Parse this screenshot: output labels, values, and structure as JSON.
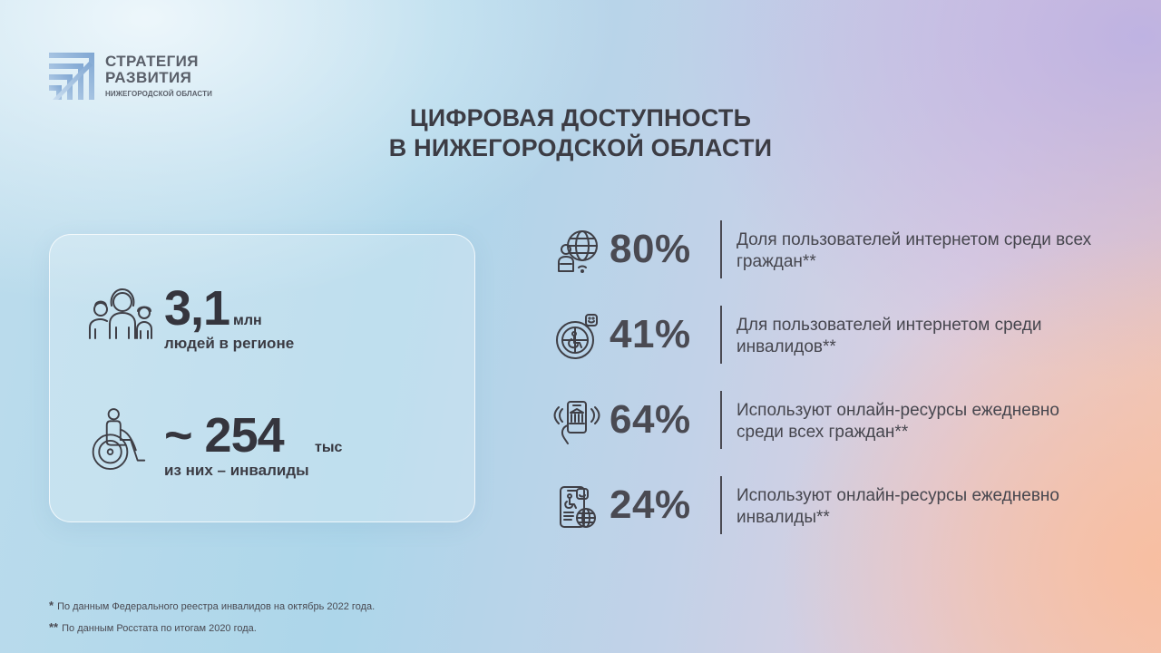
{
  "logo": {
    "line1": "СТРАТЕГИЯ",
    "line2": "РАЗВИТИЯ",
    "subtitle": "НИЖЕГОРОДСКОЙ ОБЛАСТИ"
  },
  "title": {
    "line1": "ЦИФРОВАЯ ДОСТУПНОСТЬ",
    "line2": "В НИЖЕГОРОДСКОЙ ОБЛАСТИ"
  },
  "card": {
    "population": {
      "icon": "people-group-icon",
      "value": "3,1",
      "unit": "млн",
      "description": "людей в регионе"
    },
    "disabled": {
      "icon": "wheelchair-user-icon",
      "value": "~ 254",
      "unit": "тыс",
      "description": "из них – инвалиды"
    }
  },
  "metrics": [
    {
      "icon": "globe-user-icon",
      "value": "80%",
      "text": "Доля пользователей интернетом среди всех граждан**"
    },
    {
      "icon": "globe-accessibility-icon",
      "value": "41%",
      "text": "Для пользователей интернетом среди инвалидов**"
    },
    {
      "icon": "phone-services-icon",
      "value": "64%",
      "text": "Используют онлайн-ресурсы ежедневно среди всех граждан**"
    },
    {
      "icon": "phone-accessibility-globe-icon",
      "value": "24%",
      "text": "Используют онлайн-ресурсы ежедневно инвалиды**"
    }
  ],
  "footnotes": [
    {
      "mark": "*",
      "text": "По данным Федерального реестра инвалидов на октябрь 2022 года."
    },
    {
      "mark": "**",
      "text": "По данным Росстата по итогам 2020 года."
    }
  ],
  "colors": {
    "text": "#3f3f46",
    "logo": "#5a5f69",
    "logo_stripes": "#8fb2d8"
  }
}
